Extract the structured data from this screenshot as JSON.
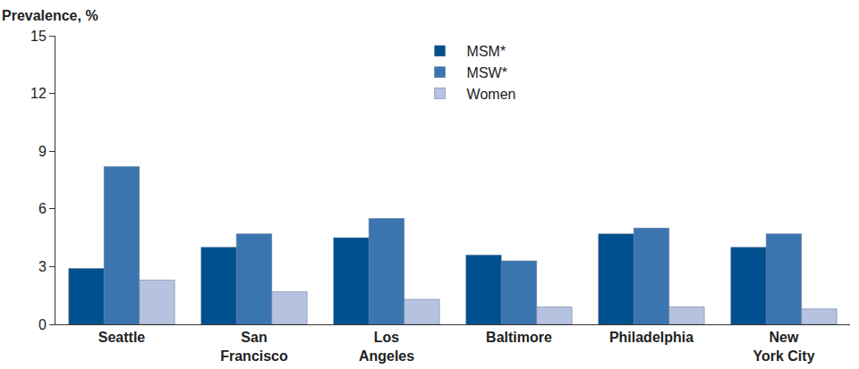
{
  "chart_data": {
    "type": "bar",
    "y_label": "Prevalence, %",
    "categories": [
      "Seattle",
      "San Francisco",
      "Los Angeles",
      "Baltimore",
      "Philadelphia",
      "New York City"
    ],
    "series": [
      {
        "name": "MSM*",
        "color": "#00508f",
        "values": [
          2.9,
          4.0,
          4.5,
          3.6,
          4.7,
          4.0
        ]
      },
      {
        "name": "MSW*",
        "color": "#3a75b0",
        "values": [
          8.2,
          4.7,
          5.5,
          3.3,
          5.0,
          4.7
        ]
      },
      {
        "name": "Women",
        "color": "#b6c3e0",
        "values": [
          2.3,
          1.7,
          1.3,
          0.9,
          0.9,
          0.8
        ]
      }
    ],
    "ylim": [
      0,
      15
    ],
    "yticks": [
      0,
      3,
      6,
      9,
      12,
      15
    ],
    "grid": false,
    "legend": "top"
  }
}
